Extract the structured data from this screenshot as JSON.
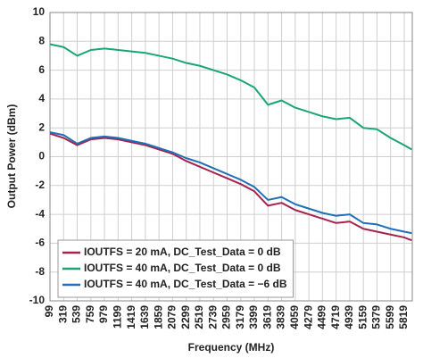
{
  "chart_data": {
    "type": "line",
    "x_label": "Frequency (MHz)",
    "y_label": "Output Power (dBm)",
    "x": [
      99,
      319,
      539,
      759,
      979,
      1199,
      1419,
      1639,
      1859,
      2079,
      2299,
      2519,
      2739,
      2959,
      3179,
      3399,
      3619,
      3839,
      4059,
      4279,
      4499,
      4719,
      4939,
      5159,
      5379,
      5599,
      5819,
      5939
    ],
    "series": [
      {
        "name": "IOUTFS = 20 mA, DC_Test_Data = 0 dB",
        "color": "#a6234d",
        "values": [
          1.6,
          1.3,
          0.8,
          1.2,
          1.3,
          1.2,
          1.0,
          0.8,
          0.5,
          0.2,
          -0.3,
          -0.7,
          -1.1,
          -1.5,
          -1.9,
          -2.4,
          -3.4,
          -3.2,
          -3.7,
          -4.0,
          -4.3,
          -4.6,
          -4.5,
          -5.0,
          -5.2,
          -5.4,
          -5.6,
          -5.8
        ]
      },
      {
        "name": "IOUTFS = 40 mA, DC_Test_Data = 0 dB",
        "color": "#1aa672",
        "values": [
          7.8,
          7.6,
          7.0,
          7.4,
          7.5,
          7.4,
          7.3,
          7.2,
          7.0,
          6.8,
          6.5,
          6.3,
          6.0,
          5.7,
          5.3,
          4.8,
          3.6,
          3.9,
          3.4,
          3.1,
          2.8,
          2.6,
          2.7,
          2.0,
          1.9,
          1.3,
          0.8,
          0.5
        ]
      },
      {
        "name": "IOUTFS = 40 mA, DC_Test_Data = −6 dB",
        "color": "#1f70b8",
        "values": [
          1.7,
          1.5,
          0.9,
          1.3,
          1.4,
          1.3,
          1.1,
          0.9,
          0.6,
          0.3,
          -0.1,
          -0.4,
          -0.8,
          -1.2,
          -1.6,
          -2.1,
          -3.0,
          -2.8,
          -3.3,
          -3.6,
          -3.9,
          -4.1,
          -4.0,
          -4.6,
          -4.7,
          -5.0,
          -5.2,
          -5.3
        ]
      }
    ],
    "xlim": [
      99,
      5949
    ],
    "xticks": [
      99,
      319,
      539,
      759,
      979,
      1199,
      1419,
      1639,
      1859,
      2079,
      2299,
      2519,
      2739,
      2959,
      3179,
      3399,
      3619,
      3839,
      4059,
      4279,
      4499,
      4719,
      4939,
      5159,
      5379,
      5599,
      5819
    ],
    "ylim": [
      -10,
      10
    ],
    "yticks": [
      -10,
      -8,
      -6,
      -4,
      -2,
      0,
      2,
      4,
      6,
      8,
      10
    ],
    "grid": true,
    "legend": "lower-left"
  }
}
